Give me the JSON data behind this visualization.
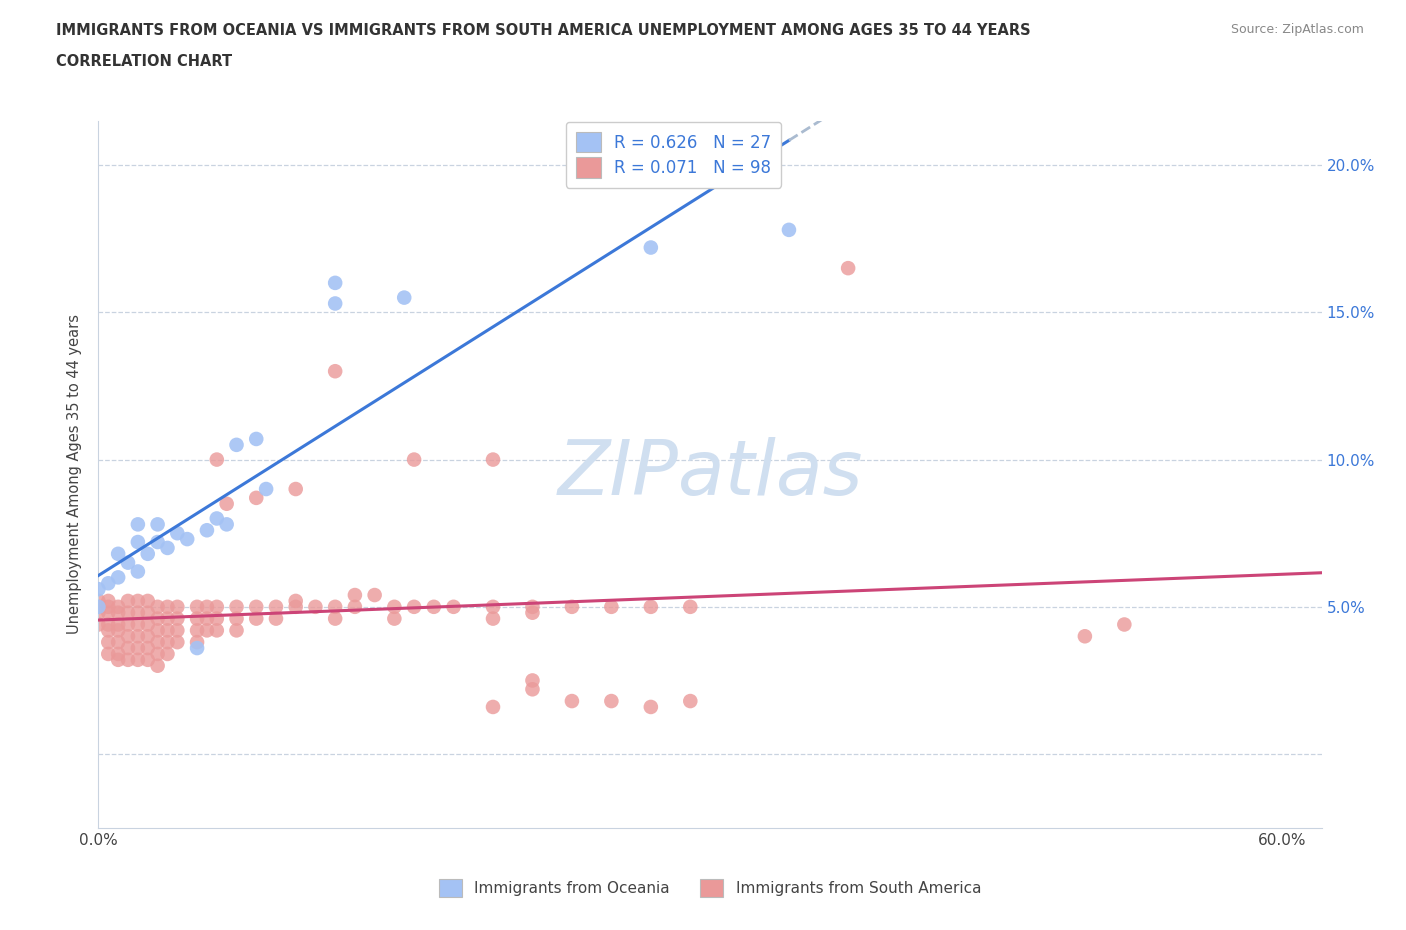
{
  "title_line1": "IMMIGRANTS FROM OCEANIA VS IMMIGRANTS FROM SOUTH AMERICA UNEMPLOYMENT AMONG AGES 35 TO 44 YEARS",
  "title_line2": "CORRELATION CHART",
  "source_text": "Source: ZipAtlas.com",
  "ylabel": "Unemployment Among Ages 35 to 44 years",
  "xlim": [
    0.0,
    0.62
  ],
  "ylim": [
    -0.025,
    0.215
  ],
  "xtick_positions": [
    0.0,
    0.1,
    0.2,
    0.3,
    0.4,
    0.5,
    0.6
  ],
  "xticklabels": [
    "0.0%",
    "",
    "",
    "",
    "",
    "",
    "60.0%"
  ],
  "ytick_positions": [
    0.0,
    0.05,
    0.1,
    0.15,
    0.2
  ],
  "ytick_labels_right": [
    "",
    "5.0%",
    "10.0%",
    "15.0%",
    "20.0%"
  ],
  "blue_color": "#a4c2f4",
  "pink_color": "#ea9999",
  "blue_line_color": "#3c78d8",
  "pink_line_color": "#cc4477",
  "grid_color": "#c9d3e0",
  "watermark_color": "#d0dff0",
  "blue_scatter": [
    [
      0.0,
      0.056
    ],
    [
      0.0,
      0.05
    ],
    [
      0.005,
      0.058
    ],
    [
      0.01,
      0.06
    ],
    [
      0.01,
      0.068
    ],
    [
      0.015,
      0.065
    ],
    [
      0.02,
      0.072
    ],
    [
      0.02,
      0.078
    ],
    [
      0.02,
      0.062
    ],
    [
      0.025,
      0.068
    ],
    [
      0.03,
      0.072
    ],
    [
      0.03,
      0.078
    ],
    [
      0.035,
      0.07
    ],
    [
      0.04,
      0.075
    ],
    [
      0.045,
      0.073
    ],
    [
      0.05,
      0.036
    ],
    [
      0.055,
      0.076
    ],
    [
      0.06,
      0.08
    ],
    [
      0.065,
      0.078
    ],
    [
      0.07,
      0.105
    ],
    [
      0.08,
      0.107
    ],
    [
      0.085,
      0.09
    ],
    [
      0.12,
      0.153
    ],
    [
      0.12,
      0.16
    ],
    [
      0.155,
      0.155
    ],
    [
      0.28,
      0.172
    ],
    [
      0.35,
      0.178
    ]
  ],
  "pink_scatter": [
    [
      0.0,
      0.05
    ],
    [
      0.0,
      0.052
    ],
    [
      0.0,
      0.048
    ],
    [
      0.0,
      0.044
    ],
    [
      0.005,
      0.05
    ],
    [
      0.005,
      0.048
    ],
    [
      0.005,
      0.052
    ],
    [
      0.005,
      0.044
    ],
    [
      0.005,
      0.042
    ],
    [
      0.005,
      0.038
    ],
    [
      0.005,
      0.034
    ],
    [
      0.01,
      0.05
    ],
    [
      0.01,
      0.048
    ],
    [
      0.01,
      0.044
    ],
    [
      0.01,
      0.042
    ],
    [
      0.01,
      0.038
    ],
    [
      0.01,
      0.034
    ],
    [
      0.01,
      0.032
    ],
    [
      0.015,
      0.052
    ],
    [
      0.015,
      0.048
    ],
    [
      0.015,
      0.044
    ],
    [
      0.015,
      0.04
    ],
    [
      0.015,
      0.036
    ],
    [
      0.015,
      0.032
    ],
    [
      0.02,
      0.052
    ],
    [
      0.02,
      0.048
    ],
    [
      0.02,
      0.044
    ],
    [
      0.02,
      0.04
    ],
    [
      0.02,
      0.036
    ],
    [
      0.02,
      0.032
    ],
    [
      0.025,
      0.052
    ],
    [
      0.025,
      0.048
    ],
    [
      0.025,
      0.044
    ],
    [
      0.025,
      0.04
    ],
    [
      0.025,
      0.036
    ],
    [
      0.025,
      0.032
    ],
    [
      0.03,
      0.05
    ],
    [
      0.03,
      0.046
    ],
    [
      0.03,
      0.042
    ],
    [
      0.03,
      0.038
    ],
    [
      0.03,
      0.034
    ],
    [
      0.03,
      0.03
    ],
    [
      0.035,
      0.05
    ],
    [
      0.035,
      0.046
    ],
    [
      0.035,
      0.042
    ],
    [
      0.035,
      0.038
    ],
    [
      0.035,
      0.034
    ],
    [
      0.04,
      0.05
    ],
    [
      0.04,
      0.046
    ],
    [
      0.04,
      0.042
    ],
    [
      0.04,
      0.038
    ],
    [
      0.05,
      0.05
    ],
    [
      0.05,
      0.046
    ],
    [
      0.05,
      0.042
    ],
    [
      0.05,
      0.038
    ],
    [
      0.055,
      0.05
    ],
    [
      0.055,
      0.046
    ],
    [
      0.055,
      0.042
    ],
    [
      0.06,
      0.05
    ],
    [
      0.06,
      0.046
    ],
    [
      0.06,
      0.042
    ],
    [
      0.065,
      0.085
    ],
    [
      0.07,
      0.05
    ],
    [
      0.07,
      0.046
    ],
    [
      0.07,
      0.042
    ],
    [
      0.08,
      0.05
    ],
    [
      0.08,
      0.046
    ],
    [
      0.08,
      0.087
    ],
    [
      0.09,
      0.05
    ],
    [
      0.09,
      0.046
    ],
    [
      0.1,
      0.05
    ],
    [
      0.1,
      0.052
    ],
    [
      0.1,
      0.09
    ],
    [
      0.11,
      0.05
    ],
    [
      0.12,
      0.05
    ],
    [
      0.12,
      0.046
    ],
    [
      0.13,
      0.05
    ],
    [
      0.13,
      0.054
    ],
    [
      0.14,
      0.054
    ],
    [
      0.15,
      0.05
    ],
    [
      0.15,
      0.046
    ],
    [
      0.16,
      0.05
    ],
    [
      0.17,
      0.05
    ],
    [
      0.18,
      0.05
    ],
    [
      0.2,
      0.05
    ],
    [
      0.2,
      0.046
    ],
    [
      0.22,
      0.048
    ],
    [
      0.22,
      0.05
    ],
    [
      0.24,
      0.05
    ],
    [
      0.26,
      0.05
    ],
    [
      0.28,
      0.05
    ],
    [
      0.3,
      0.05
    ],
    [
      0.12,
      0.13
    ],
    [
      0.06,
      0.1
    ],
    [
      0.16,
      0.1
    ],
    [
      0.2,
      0.1
    ],
    [
      0.38,
      0.165
    ],
    [
      0.5,
      0.04
    ],
    [
      0.52,
      0.044
    ],
    [
      0.22,
      0.025
    ],
    [
      0.24,
      0.018
    ],
    [
      0.26,
      0.018
    ],
    [
      0.28,
      0.016
    ],
    [
      0.3,
      0.018
    ],
    [
      0.2,
      0.016
    ],
    [
      0.22,
      0.022
    ]
  ]
}
